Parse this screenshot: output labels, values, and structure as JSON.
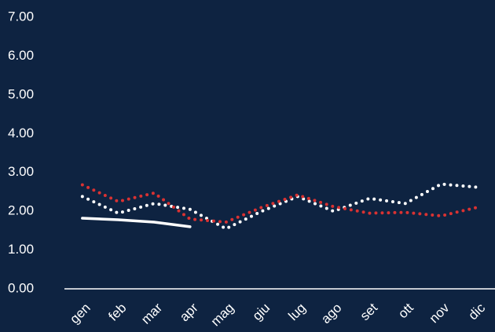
{
  "chart_data": {
    "type": "line",
    "categories": [
      "gen",
      "feb",
      "mar",
      "apr",
      "mag",
      "giu",
      "lug",
      "ago",
      "set",
      "ott",
      "nov",
      "dic"
    ],
    "series": [
      {
        "color": "#ffffff",
        "style": "solid",
        "values": [
          1.82,
          1.78,
          1.72,
          1.6,
          null,
          null,
          null,
          null,
          null,
          null,
          null,
          null
        ]
      },
      {
        "color": "#ffffff",
        "style": "dotted",
        "values": [
          2.38,
          1.95,
          2.2,
          2.05,
          1.55,
          2.0,
          2.38,
          2.0,
          2.33,
          2.2,
          2.7,
          2.62
        ]
      },
      {
        "color": "#d93232",
        "style": "dotted",
        "values": [
          2.68,
          2.25,
          2.47,
          1.8,
          1.72,
          2.1,
          2.42,
          2.12,
          1.95,
          1.97,
          1.88,
          2.1
        ]
      }
    ],
    "ylim": [
      0,
      7
    ],
    "yticks": [
      {
        "value": 0,
        "label": "0.00"
      },
      {
        "value": 1,
        "label": "1.00"
      },
      {
        "value": 2,
        "label": "2.00"
      },
      {
        "value": 3,
        "label": "3.00"
      },
      {
        "value": 4,
        "label": "4.00"
      },
      {
        "value": 5,
        "label": "5.00"
      },
      {
        "value": 6,
        "label": "6.00"
      },
      {
        "value": 7,
        "label": "7.00"
      }
    ],
    "grid": false
  }
}
